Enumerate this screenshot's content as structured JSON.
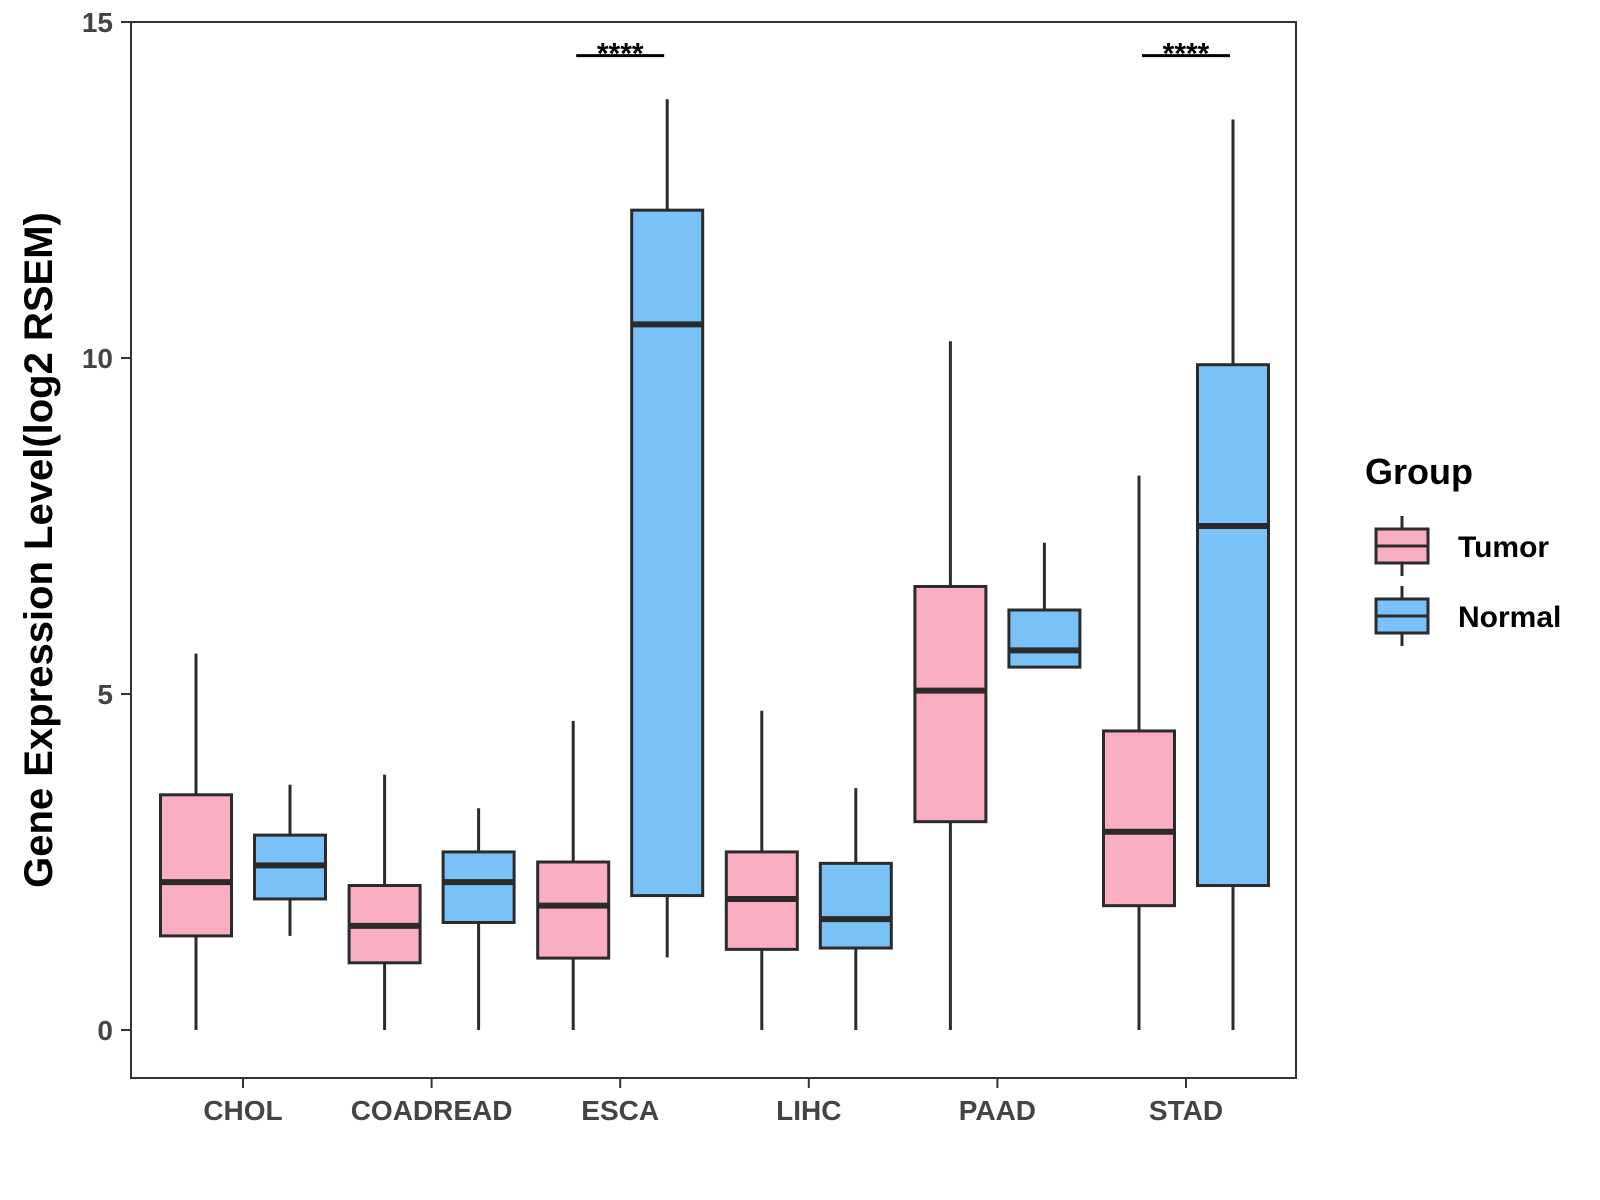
{
  "chart_data": {
    "type": "boxplot",
    "title": "",
    "xlabel": "",
    "ylabel": "Gene Expression Level(log2 RSEM)",
    "ylim": [
      -0.7,
      15
    ],
    "yticks": [
      0,
      5,
      10,
      15
    ],
    "categories": [
      "CHOL",
      "COADREAD",
      "ESCA",
      "LIHC",
      "PAAD",
      "STAD"
    ],
    "legend": {
      "title": "Group",
      "position": "right",
      "entries": [
        {
          "name": "Tumor",
          "color": "#F9AFC1"
        },
        {
          "name": "Normal",
          "color": "#7AC1F8"
        }
      ]
    },
    "series": [
      {
        "name": "Tumor",
        "color": "#F9AFC1",
        "boxes": [
          {
            "category": "CHOL",
            "min": 0,
            "q1": 1.4,
            "median": 2.2,
            "q3": 3.5,
            "max": 5.6
          },
          {
            "category": "COADREAD",
            "min": 0,
            "q1": 1.0,
            "median": 1.55,
            "q3": 2.15,
            "max": 3.8
          },
          {
            "category": "ESCA",
            "min": 0,
            "q1": 1.07,
            "median": 1.85,
            "q3": 2.5,
            "max": 4.6
          },
          {
            "category": "LIHC",
            "min": 0,
            "q1": 1.2,
            "median": 1.95,
            "q3": 2.65,
            "max": 4.75
          },
          {
            "category": "PAAD",
            "min": 0,
            "q1": 3.1,
            "median": 5.05,
            "q3": 6.6,
            "max": 10.25
          },
          {
            "category": "STAD",
            "min": 0,
            "q1": 1.85,
            "median": 2.95,
            "q3": 4.45,
            "max": 8.25
          }
        ]
      },
      {
        "name": "Normal",
        "color": "#7AC1F8",
        "boxes": [
          {
            "category": "CHOL",
            "min": 1.4,
            "q1": 1.95,
            "median": 2.45,
            "q3": 2.9,
            "max": 3.65
          },
          {
            "category": "COADREAD",
            "min": 0,
            "q1": 1.6,
            "median": 2.2,
            "q3": 2.65,
            "max": 3.3
          },
          {
            "category": "ESCA",
            "min": 1.08,
            "q1": 2.0,
            "median": 10.5,
            "q3": 12.2,
            "max": 13.85
          },
          {
            "category": "LIHC",
            "min": 0,
            "q1": 1.22,
            "median": 1.65,
            "q3": 2.48,
            "max": 3.6
          },
          {
            "category": "PAAD",
            "min": 5.4,
            "q1": 5.4,
            "median": 5.65,
            "q3": 6.25,
            "max": 7.25
          },
          {
            "category": "STAD",
            "min": 0,
            "q1": 2.15,
            "median": 7.5,
            "q3": 9.9,
            "max": 13.55
          }
        ]
      }
    ],
    "annotations": [
      {
        "category": "ESCA",
        "label": "****",
        "y": 14.5
      },
      {
        "category": "STAD",
        "label": "****",
        "y": 14.5
      }
    ]
  }
}
